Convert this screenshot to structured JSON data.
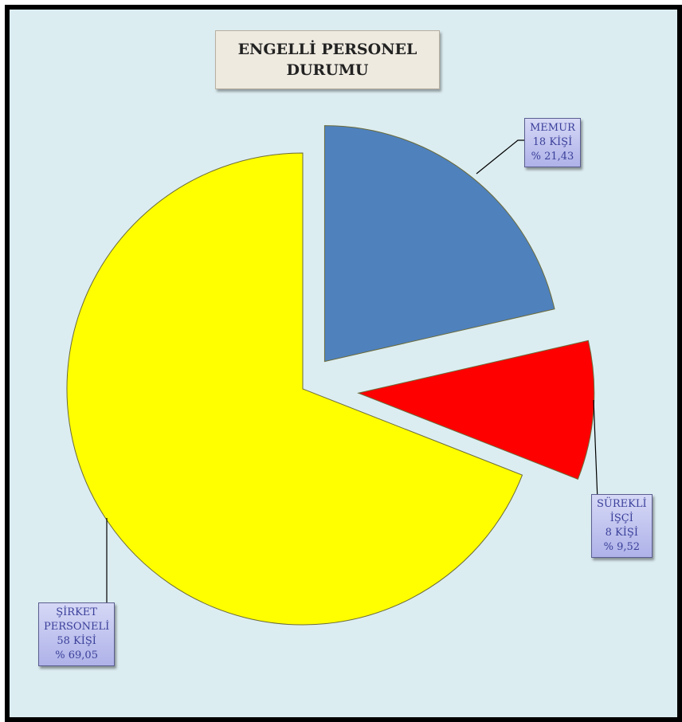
{
  "chart_data": {
    "type": "pie",
    "title_lines": [
      "ENGELLİ PERSONEL",
      "DURUMU"
    ],
    "slices": [
      {
        "name": "MEMUR",
        "count_label": "18 KİŞİ",
        "pct_label": "% 21,43",
        "value": 21.43,
        "color": "#4f81bd"
      },
      {
        "name": "SÜREKLİ İŞÇİ",
        "name_lines": [
          "SÜREKLİ",
          "İŞÇİ"
        ],
        "count_label": "8 KİŞİ",
        "pct_label": "% 9,52",
        "value": 9.52,
        "color": "#ff0000"
      },
      {
        "name": "ŞİRKET PERSONELİ",
        "name_lines": [
          "ŞİRKET",
          "PERSONELİ"
        ],
        "count_label": "58 KİŞİ",
        "pct_label": "% 69,05",
        "value": 69.05,
        "color": "#ffff00"
      }
    ]
  }
}
